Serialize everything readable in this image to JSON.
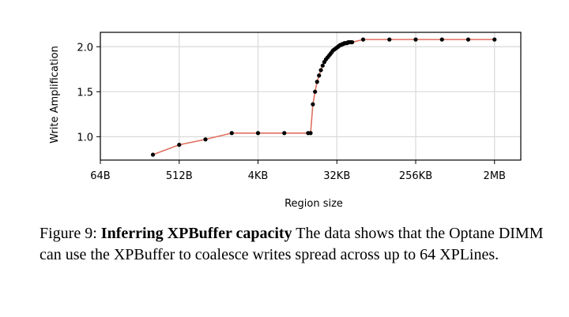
{
  "chart_data": {
    "type": "line",
    "xlabel": "Region size",
    "ylabel": "Write Amplification",
    "x_scale": "log2",
    "x_ticks": [
      "64B",
      "512B",
      "4KB",
      "32KB",
      "256KB",
      "2MB"
    ],
    "y_ticks": [
      "1.0",
      "1.5",
      "2.0"
    ],
    "ylim": [
      0.74,
      2.16
    ],
    "grid": true,
    "line_color": "#e07060",
    "marker_color": "#000000",
    "series": [
      {
        "x": [
          "256B",
          "512B",
          "1KB",
          "2KB",
          "4KB",
          "8KB",
          "15KB",
          "16KB",
          "17KB",
          "18KB",
          "19KB",
          "20KB",
          "21KB",
          "22KB",
          "23KB",
          "24KB",
          "25KB",
          "26KB",
          "27KB",
          "28KB",
          "29KB",
          "30KB",
          "31KB",
          "32KB",
          "33KB",
          "34KB",
          "35KB",
          "36KB",
          "37KB",
          "38KB",
          "39KB",
          "40KB",
          "41KB",
          "42KB",
          "43KB",
          "44KB",
          "45KB",
          "46KB",
          "47KB",
          "48KB",
          "64KB",
          "128KB",
          "256KB",
          "512KB",
          "1MB",
          "2MB"
        ],
        "values": [
          0.8,
          0.91,
          0.97,
          1.04,
          1.04,
          1.04,
          1.04,
          1.04,
          1.36,
          1.5,
          1.61,
          1.68,
          1.74,
          1.79,
          1.83,
          1.86,
          1.88,
          1.9,
          1.92,
          1.94,
          1.96,
          1.97,
          1.98,
          1.99,
          2.0,
          2.01,
          2.02,
          2.02,
          2.03,
          2.03,
          2.04,
          2.04,
          2.04,
          2.04,
          2.05,
          2.05,
          2.05,
          2.05,
          2.05,
          2.05,
          2.08,
          2.08,
          2.08,
          2.08,
          2.08,
          2.08
        ]
      }
    ]
  },
  "caption": {
    "prefix": "Figure 9: ",
    "bold": "Inferring XPBuffer capacity",
    "rest": " The data shows that the Optane DIMM can use the XPBuffer to coalesce writes spread across up to 64 XPLines."
  }
}
